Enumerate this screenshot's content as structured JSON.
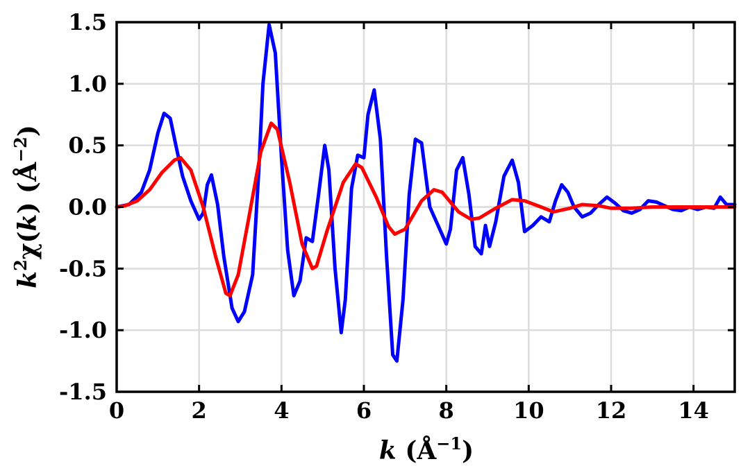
{
  "chart_data": {
    "type": "line",
    "title": "",
    "xlabel": {
      "var": "k",
      "open": " (Å",
      "sup": "−1",
      "close": ")"
    },
    "ylabel": {
      "var": "k",
      "sup1": "2",
      "func": "χ(",
      "var2": "k",
      "open": ") (Å",
      "sup2": "−2",
      "close": ")"
    },
    "xlim": [
      0,
      15
    ],
    "ylim": [
      -1.5,
      1.5
    ],
    "xticks": [
      0,
      2,
      4,
      6,
      8,
      10,
      12,
      14
    ],
    "xtick_labels": [
      "0",
      "2",
      "4",
      "6",
      "8",
      "10",
      "12",
      "14"
    ],
    "yticks": [
      -1.5,
      -1.0,
      -0.5,
      0.0,
      0.5,
      1.0,
      1.5
    ],
    "ytick_labels": [
      "-1.5",
      "-1.0",
      "-0.5",
      "0.0",
      "0.5",
      "1.0",
      "1.5"
    ],
    "grid": true,
    "legend": "none",
    "series": [
      {
        "color": "#0000ff",
        "x": [
          0,
          0.3,
          0.6,
          0.8,
          1.0,
          1.15,
          1.3,
          1.45,
          1.6,
          1.8,
          2.0,
          2.1,
          2.2,
          2.3,
          2.45,
          2.6,
          2.8,
          2.95,
          3.1,
          3.3,
          3.45,
          3.55,
          3.7,
          3.85,
          4.0,
          4.15,
          4.3,
          4.45,
          4.6,
          4.75,
          4.9,
          5.05,
          5.15,
          5.3,
          5.45,
          5.55,
          5.7,
          5.85,
          6.0,
          6.1,
          6.25,
          6.4,
          6.55,
          6.7,
          6.8,
          6.95,
          7.1,
          7.25,
          7.4,
          7.6,
          7.8,
          8.0,
          8.1,
          8.25,
          8.4,
          8.55,
          8.7,
          8.85,
          8.95,
          9.05,
          9.2,
          9.4,
          9.6,
          9.75,
          9.9,
          10.1,
          10.3,
          10.5,
          10.65,
          10.8,
          10.95,
          11.1,
          11.3,
          11.5,
          11.7,
          11.9,
          12.1,
          12.3,
          12.5,
          12.7,
          12.9,
          13.1,
          13.3,
          13.5,
          13.7,
          13.9,
          14.1,
          14.3,
          14.5,
          14.65,
          14.8,
          15.0
        ],
        "y": [
          0.0,
          0.02,
          0.12,
          0.3,
          0.6,
          0.76,
          0.72,
          0.48,
          0.25,
          0.05,
          -0.1,
          -0.05,
          0.18,
          0.26,
          0.02,
          -0.4,
          -0.82,
          -0.93,
          -0.85,
          -0.55,
          0.3,
          1.0,
          1.48,
          1.25,
          0.4,
          -0.35,
          -0.72,
          -0.6,
          -0.25,
          -0.28,
          0.1,
          0.5,
          0.3,
          -0.5,
          -1.02,
          -0.75,
          0.15,
          0.42,
          0.4,
          0.75,
          0.95,
          0.55,
          -0.4,
          -1.2,
          -1.25,
          -0.75,
          0.1,
          0.55,
          0.52,
          0.0,
          -0.15,
          -0.3,
          -0.18,
          0.3,
          0.4,
          0.1,
          -0.32,
          -0.38,
          -0.15,
          -0.32,
          -0.12,
          0.25,
          0.38,
          0.2,
          -0.2,
          -0.15,
          -0.08,
          -0.12,
          0.05,
          0.18,
          0.12,
          0.0,
          -0.08,
          -0.05,
          0.02,
          0.08,
          0.03,
          -0.03,
          -0.05,
          -0.02,
          0.05,
          0.04,
          0.01,
          -0.02,
          -0.03,
          0.0,
          -0.02,
          0.0,
          -0.01,
          0.08,
          0.02,
          0.02
        ]
      },
      {
        "color": "#ff0000",
        "x": [
          0,
          0.2,
          0.5,
          0.8,
          1.1,
          1.4,
          1.55,
          1.8,
          2.1,
          2.4,
          2.65,
          2.75,
          2.95,
          3.2,
          3.5,
          3.75,
          3.9,
          4.2,
          4.5,
          4.75,
          4.85,
          5.1,
          5.5,
          5.8,
          5.95,
          6.3,
          6.6,
          6.75,
          7.0,
          7.4,
          7.7,
          7.9,
          8.3,
          8.6,
          8.8,
          9.2,
          9.6,
          9.9,
          10.3,
          10.6,
          11.0,
          11.3,
          11.7,
          12.0,
          12.5,
          13.0,
          13.5,
          14.0,
          14.5,
          15.0
        ],
        "y": [
          0.0,
          0.01,
          0.05,
          0.14,
          0.28,
          0.38,
          0.4,
          0.3,
          0.0,
          -0.4,
          -0.7,
          -0.72,
          -0.55,
          -0.1,
          0.45,
          0.68,
          0.63,
          0.2,
          -0.3,
          -0.5,
          -0.48,
          -0.2,
          0.2,
          0.35,
          0.32,
          0.08,
          -0.16,
          -0.22,
          -0.18,
          0.05,
          0.14,
          0.12,
          -0.04,
          -0.1,
          -0.09,
          -0.01,
          0.06,
          0.05,
          0.0,
          -0.04,
          -0.01,
          0.02,
          0.01,
          -0.01,
          -0.01,
          0.0,
          0.0,
          0.0,
          0.0,
          0.0
        ]
      }
    ]
  }
}
